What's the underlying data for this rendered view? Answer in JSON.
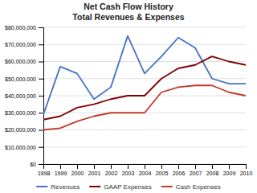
{
  "chart_data": {
    "type": "line",
    "title": "Net Cash Flow History\nTotal Revenues & Expenses",
    "x": [
      1998,
      1999,
      2000,
      2001,
      2002,
      2003,
      2004,
      2005,
      2006,
      2007,
      2008,
      2009,
      2010
    ],
    "xlim": [
      1998,
      2010
    ],
    "xticks": [
      1998,
      1999,
      2000,
      2001,
      2002,
      2003,
      2004,
      2005,
      2006,
      2007,
      2008,
      2009,
      2010
    ],
    "ylim": [
      0,
      80000000
    ],
    "yticks": [
      {
        "value": 0,
        "label": "$0"
      },
      {
        "value": 10000000,
        "label": "$10,000,000"
      },
      {
        "value": 20000000,
        "label": "$20,000,000"
      },
      {
        "value": 30000000,
        "label": "$30,000,000"
      },
      {
        "value": 40000000,
        "label": "$40,000,000"
      },
      {
        "value": 50000000,
        "label": "$50,000,000"
      },
      {
        "value": 60000000,
        "label": "$60,000,000"
      },
      {
        "value": 70000000,
        "label": "$70,000,000"
      },
      {
        "value": 80000000,
        "label": "$80,000,000"
      }
    ],
    "grid": true,
    "legend": "bottom",
    "series": [
      {
        "name": "Revenues",
        "color": "#4472c4",
        "values": [
          29000000,
          57000000,
          53000000,
          38000000,
          45000000,
          75000000,
          53000000,
          63000000,
          74000000,
          68000000,
          50000000,
          47000000,
          47000000
        ]
      },
      {
        "name": "GAAP Expenses",
        "color": "#7f0000",
        "values": [
          26000000,
          28000000,
          33000000,
          35000000,
          38000000,
          40000000,
          40000000,
          50000000,
          56000000,
          58000000,
          63000000,
          60000000,
          58000000
        ]
      },
      {
        "name": "Cash Expenses",
        "color": "#c0392b",
        "values": [
          20000000,
          21000000,
          25000000,
          28000000,
          30000000,
          30000000,
          30000000,
          42000000,
          45000000,
          46000000,
          46000000,
          42000000,
          40000000
        ]
      }
    ]
  }
}
